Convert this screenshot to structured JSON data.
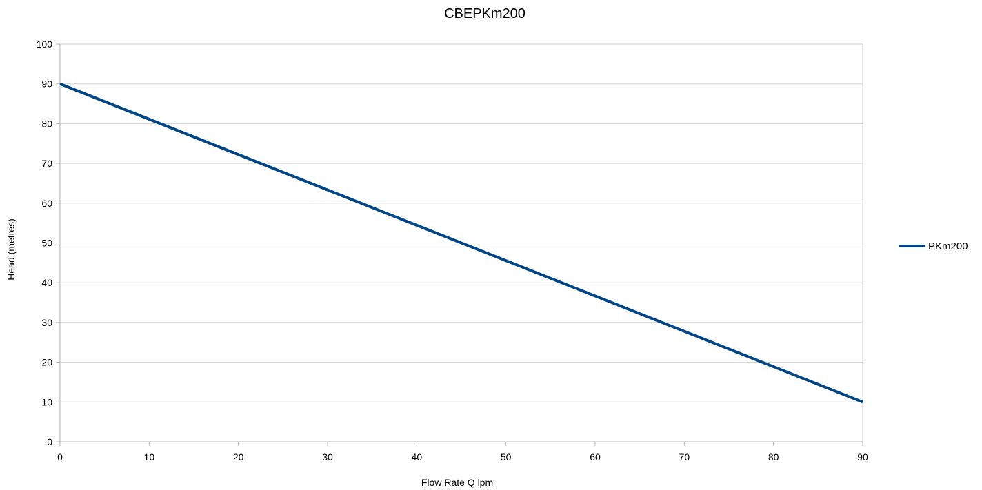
{
  "chart_data": {
    "type": "line",
    "title": "CBEPKm200",
    "xlabel": "Flow Rate Q lpm",
    "ylabel": "Head (metres)",
    "xlim": [
      0,
      90
    ],
    "ylim": [
      0,
      100
    ],
    "x_ticks": [
      "0",
      "10",
      "20",
      "30",
      "40",
      "50",
      "60",
      "70",
      "80",
      "90"
    ],
    "y_ticks": [
      "0",
      "10",
      "20",
      "30",
      "40",
      "50",
      "60",
      "70",
      "80",
      "90",
      "100"
    ],
    "grid": "horizontal",
    "legend_position": "right",
    "series": [
      {
        "name": "PKm200",
        "color": "#004586",
        "x": [
          0,
          90
        ],
        "y": [
          90,
          10
        ]
      }
    ]
  }
}
